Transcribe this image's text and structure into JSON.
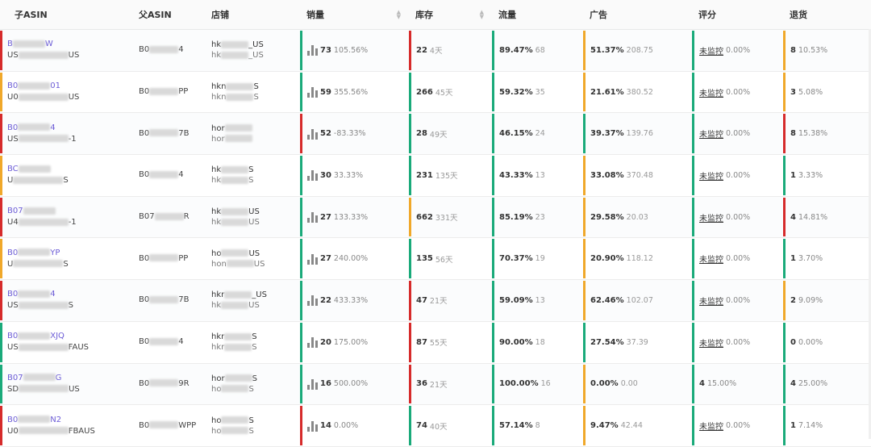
{
  "colors": {
    "red": "#d62b2b",
    "green": "#1aaa7a",
    "orange": "#f0a82a"
  },
  "headers": {
    "child_asin": "子ASIN",
    "parent_asin": "父ASIN",
    "shop": "店铺",
    "sales": "销量",
    "stock": "库存",
    "traffic": "流量",
    "ad": "广告",
    "rating": "评分",
    "returns": "退货"
  },
  "rows": [
    {
      "child_asin": "B",
      "child_asin_end": "W",
      "sku_start": "US",
      "sku_end": "US",
      "parent_asin": "B0",
      "parent_asin_end": "4",
      "shop1_start": "hk",
      "shop1_end": "_US",
      "shop2_start": "hk",
      "shop2_end": "_US",
      "sales": "73",
      "sales_pct": "105.56%",
      "stock": "22",
      "stock_days": "4天",
      "traffic": "89.47%",
      "traffic_sub": "68",
      "ad": "51.37%",
      "ad_sub": "208.75",
      "rating_num": "",
      "rating_text": "未监控",
      "rating_pct": "0.00%",
      "returns": "8",
      "returns_pct": "10.53%",
      "bars": {
        "asin": "red",
        "sales": "green",
        "stock": "red",
        "traffic": "green",
        "ad": "orange",
        "rating": "green",
        "returns": "orange"
      }
    },
    {
      "child_asin": "B0",
      "child_asin_end": "01",
      "sku_start": "U0",
      "sku_end": "US",
      "parent_asin": "B0",
      "parent_asin_end": "PP",
      "shop1_start": "hkn",
      "shop1_end": "S",
      "shop2_start": "hkn",
      "shop2_end": "S",
      "sales": "59",
      "sales_pct": "355.56%",
      "stock": "266",
      "stock_days": "45天",
      "traffic": "59.32%",
      "traffic_sub": "35",
      "ad": "21.61%",
      "ad_sub": "380.52",
      "rating_num": "",
      "rating_text": "未监控",
      "rating_pct": "0.00%",
      "returns": "3",
      "returns_pct": "5.08%",
      "bars": {
        "asin": "orange",
        "sales": "green",
        "stock": "green",
        "traffic": "green",
        "ad": "orange",
        "rating": "green",
        "returns": "orange"
      }
    },
    {
      "child_asin": "B0",
      "child_asin_end": "4",
      "sku_start": "US",
      "sku_end": "-1",
      "parent_asin": "B0",
      "parent_asin_end": "7B",
      "shop1_start": "hor",
      "shop1_end": "",
      "shop2_start": "hor",
      "shop2_end": "",
      "sales": "52",
      "sales_pct": "-83.33%",
      "stock": "28",
      "stock_days": "49天",
      "traffic": "46.15%",
      "traffic_sub": "24",
      "ad": "39.37%",
      "ad_sub": "139.76",
      "rating_num": "",
      "rating_text": "未监控",
      "rating_pct": "0.00%",
      "returns": "8",
      "returns_pct": "15.38%",
      "bars": {
        "asin": "red",
        "sales": "red",
        "stock": "green",
        "traffic": "green",
        "ad": "green",
        "rating": "green",
        "returns": "red"
      }
    },
    {
      "child_asin": "BC",
      "child_asin_end": "",
      "sku_start": "U",
      "sku_end": "S",
      "parent_asin": "B0",
      "parent_asin_end": "4",
      "shop1_start": "hk",
      "shop1_end": "S",
      "shop2_start": "hk",
      "shop2_end": "S",
      "sales": "30",
      "sales_pct": "33.33%",
      "stock": "231",
      "stock_days": "135天",
      "traffic": "43.33%",
      "traffic_sub": "13",
      "ad": "33.08%",
      "ad_sub": "370.48",
      "rating_num": "",
      "rating_text": "未监控",
      "rating_pct": "0.00%",
      "returns": "1",
      "returns_pct": "3.33%",
      "bars": {
        "asin": "orange",
        "sales": "green",
        "stock": "green",
        "traffic": "green",
        "ad": "orange",
        "rating": "green",
        "returns": "green"
      }
    },
    {
      "child_asin": "B07",
      "child_asin_end": "",
      "sku_start": "U4",
      "sku_end": "-1",
      "parent_asin": "B07",
      "parent_asin_end": "R",
      "shop1_start": "hk",
      "shop1_end": "US",
      "shop2_start": "hk",
      "shop2_end": "US",
      "sales": "27",
      "sales_pct": "133.33%",
      "stock": "662",
      "stock_days": "331天",
      "traffic": "85.19%",
      "traffic_sub": "23",
      "ad": "29.58%",
      "ad_sub": "20.03",
      "rating_num": "",
      "rating_text": "未监控",
      "rating_pct": "0.00%",
      "returns": "4",
      "returns_pct": "14.81%",
      "bars": {
        "asin": "red",
        "sales": "green",
        "stock": "orange",
        "traffic": "green",
        "ad": "orange",
        "rating": "green",
        "returns": "red"
      }
    },
    {
      "child_asin": "B0",
      "child_asin_end": "YP",
      "sku_start": "U",
      "sku_end": "S",
      "parent_asin": "B0",
      "parent_asin_end": "PP",
      "shop1_start": "ho",
      "shop1_end": "US",
      "shop2_start": "hon",
      "shop2_end": "US",
      "sales": "27",
      "sales_pct": "240.00%",
      "stock": "135",
      "stock_days": "56天",
      "traffic": "70.37%",
      "traffic_sub": "19",
      "ad": "20.90%",
      "ad_sub": "118.12",
      "rating_num": "",
      "rating_text": "未监控",
      "rating_pct": "0.00%",
      "returns": "1",
      "returns_pct": "3.70%",
      "bars": {
        "asin": "orange",
        "sales": "green",
        "stock": "green",
        "traffic": "green",
        "ad": "orange",
        "rating": "green",
        "returns": "green"
      }
    },
    {
      "child_asin": "B0",
      "child_asin_end": "4",
      "sku_start": "US",
      "sku_end": "S",
      "parent_asin": "B0",
      "parent_asin_end": "7B",
      "shop1_start": "hkr",
      "shop1_end": "_US",
      "shop2_start": "hk",
      "shop2_end": "US",
      "sales": "22",
      "sales_pct": "433.33%",
      "stock": "47",
      "stock_days": "21天",
      "traffic": "59.09%",
      "traffic_sub": "13",
      "ad": "62.46%",
      "ad_sub": "102.07",
      "rating_num": "",
      "rating_text": "未监控",
      "rating_pct": "0.00%",
      "returns": "2",
      "returns_pct": "9.09%",
      "bars": {
        "asin": "red",
        "sales": "green",
        "stock": "red",
        "traffic": "green",
        "ad": "orange",
        "rating": "green",
        "returns": "orange"
      }
    },
    {
      "child_asin": "B0",
      "child_asin_end": "XJQ",
      "sku_start": "US",
      "sku_end": "FAUS",
      "parent_asin": "B0",
      "parent_asin_end": "4",
      "shop1_start": "hkr",
      "shop1_end": "S",
      "shop2_start": "hkr",
      "shop2_end": "S",
      "sales": "20",
      "sales_pct": "175.00%",
      "stock": "87",
      "stock_days": "55天",
      "traffic": "90.00%",
      "traffic_sub": "18",
      "ad": "27.54%",
      "ad_sub": "37.39",
      "rating_num": "",
      "rating_text": "未监控",
      "rating_pct": "0.00%",
      "returns": "0",
      "returns_pct": "0.00%",
      "bars": {
        "asin": "green",
        "sales": "green",
        "stock": "red",
        "traffic": "green",
        "ad": "green",
        "rating": "green",
        "returns": "green"
      }
    },
    {
      "child_asin": "B07",
      "child_asin_end": "G",
      "sku_start": "SD",
      "sku_end": "US",
      "parent_asin": "B0",
      "parent_asin_end": "9R",
      "shop1_start": "hor",
      "shop1_end": "S",
      "shop2_start": "ho",
      "shop2_end": "S",
      "sales": "16",
      "sales_pct": "500.00%",
      "stock": "36",
      "stock_days": "21天",
      "traffic": "100.00%",
      "traffic_sub": "16",
      "ad": "0.00%",
      "ad_sub": "0.00",
      "rating_num": "4",
      "rating_text": "",
      "rating_pct": "15.00%",
      "returns": "4",
      "returns_pct": "25.00%",
      "bars": {
        "asin": "green",
        "sales": "green",
        "stock": "red",
        "traffic": "green",
        "ad": "orange",
        "rating": "green",
        "returns": "green"
      }
    },
    {
      "child_asin": "B0",
      "child_asin_end": "N2",
      "sku_start": "U0",
      "sku_end": "FBAUS",
      "parent_asin": "B0",
      "parent_asin_end": "WPP",
      "shop1_start": "ho",
      "shop1_end": "S",
      "shop2_start": "ho",
      "shop2_end": "S",
      "sales": "14",
      "sales_pct": "0.00%",
      "stock": "74",
      "stock_days": "40天",
      "traffic": "57.14%",
      "traffic_sub": "8",
      "ad": "9.47%",
      "ad_sub": "42.44",
      "rating_num": "",
      "rating_text": "未监控",
      "rating_pct": "0.00%",
      "returns": "1",
      "returns_pct": "7.14%",
      "bars": {
        "asin": "red",
        "sales": "red",
        "stock": "green",
        "traffic": "green",
        "ad": "orange",
        "rating": "green",
        "returns": "green"
      }
    }
  ]
}
